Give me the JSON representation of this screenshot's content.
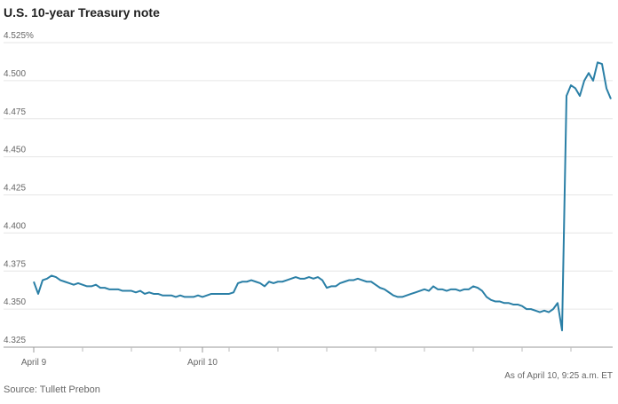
{
  "chart_data": {
    "type": "line",
    "title": "U.S. 10-year Treasury note",
    "note": "As of April 10, 9:25 a.m. ET",
    "source": "Source: Tullett Prebon",
    "categories": [
      "April 9",
      null,
      null,
      null,
      null,
      null,
      null,
      null,
      null,
      null,
      null,
      null,
      null,
      null,
      null,
      null,
      null,
      null,
      null,
      null,
      null,
      null,
      null,
      null,
      null,
      null,
      null,
      null,
      null,
      null,
      null,
      null,
      null,
      null,
      null,
      null,
      null,
      null,
      "April 10",
      null,
      null,
      null,
      null,
      null,
      null,
      null,
      null,
      null,
      null,
      null,
      null,
      null,
      null,
      null,
      null,
      null,
      null,
      null,
      null,
      null,
      null,
      null,
      null,
      null,
      null,
      null,
      null,
      null,
      null,
      null,
      null,
      null,
      null,
      null,
      null,
      null,
      null,
      null,
      null,
      null,
      null,
      null,
      null,
      null,
      null,
      null,
      null,
      null,
      null,
      null,
      null,
      null,
      null,
      null,
      null,
      null,
      null,
      null,
      null,
      null,
      null,
      null,
      null,
      null,
      null,
      null,
      null,
      null,
      null,
      null,
      null,
      null,
      null,
      null,
      null,
      null,
      null,
      null,
      null,
      null,
      null,
      null,
      null,
      null,
      null,
      null,
      null,
      null,
      null,
      null,
      null
    ],
    "series": [
      {
        "name": "U.S. 10-year Treasury note",
        "color": "#2a7fa6",
        "values": [
          4.368,
          4.36,
          4.369,
          4.37,
          4.372,
          4.371,
          4.369,
          4.368,
          4.367,
          4.366,
          4.367,
          4.366,
          4.365,
          4.365,
          4.366,
          4.364,
          4.364,
          4.363,
          4.363,
          4.363,
          4.362,
          4.362,
          4.362,
          4.361,
          4.362,
          4.36,
          4.361,
          4.36,
          4.36,
          4.359,
          4.359,
          4.359,
          4.358,
          4.359,
          4.358,
          4.358,
          4.358,
          4.359,
          4.358,
          4.359,
          4.36,
          4.36,
          4.36,
          4.36,
          4.36,
          4.361,
          4.367,
          4.368,
          4.368,
          4.369,
          4.368,
          4.367,
          4.365,
          4.368,
          4.367,
          4.368,
          4.368,
          4.369,
          4.37,
          4.371,
          4.37,
          4.37,
          4.371,
          4.37,
          4.371,
          4.369,
          4.364,
          4.365,
          4.365,
          4.367,
          4.368,
          4.369,
          4.369,
          4.37,
          4.369,
          4.368,
          4.368,
          4.366,
          4.364,
          4.363,
          4.361,
          4.359,
          4.358,
          4.358,
          4.359,
          4.36,
          4.361,
          4.362,
          4.363,
          4.362,
          4.365,
          4.363,
          4.363,
          4.362,
          4.363,
          4.363,
          4.362,
          4.363,
          4.363,
          4.365,
          4.364,
          4.362,
          4.358,
          4.356,
          4.355,
          4.355,
          4.354,
          4.354,
          4.353,
          4.353,
          4.352,
          4.35,
          4.35,
          4.349,
          4.348,
          4.349,
          4.348,
          4.35,
          4.354,
          4.336,
          4.49,
          4.497,
          4.495,
          4.49,
          4.5,
          4.505,
          4.5,
          4.512,
          4.511,
          4.495,
          4.488
        ]
      }
    ],
    "ylim": [
      4.325,
      4.525
    ],
    "yticks": [
      {
        "value": 4.525,
        "label": "4.525%"
      },
      {
        "value": 4.5,
        "label": "4.500"
      },
      4.475,
      {
        "value": 4.45,
        "label": "4.450"
      },
      4.425,
      {
        "value": 4.4,
        "label": "4.400"
      },
      4.375,
      {
        "value": 4.35,
        "label": "4.350"
      },
      4.325
    ],
    "grid": true
  }
}
